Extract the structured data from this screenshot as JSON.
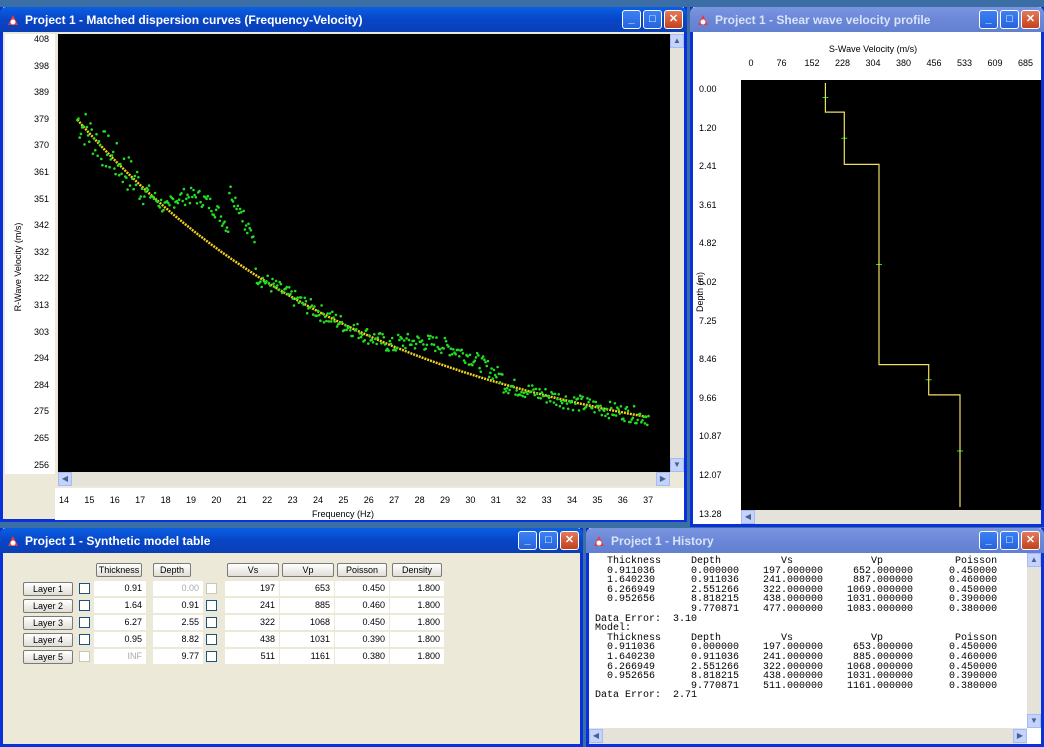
{
  "dispersion_window": {
    "title": "Project 1 - Matched dispersion curves (Frequency-Velocity)",
    "y_axis_label": "R-Wave Velocity (m/s)",
    "x_axis_label": "Frequency (Hz)",
    "y_ticks": [
      "408",
      "398",
      "389",
      "379",
      "370",
      "361",
      "351",
      "342",
      "332",
      "322",
      "313",
      "303",
      "294",
      "284",
      "275",
      "265",
      "256"
    ],
    "x_ticks": [
      "14",
      "15",
      "16",
      "17",
      "18",
      "19",
      "20",
      "21",
      "22",
      "23",
      "24",
      "25",
      "26",
      "27",
      "28",
      "29",
      "30",
      "31",
      "32",
      "33",
      "34",
      "35",
      "36",
      "37"
    ]
  },
  "profile_window": {
    "title": "Project 1 - Shear wave velocity profile",
    "x_axis_label": "S-Wave Velocity (m/s)",
    "y_axis_label": "Depth (m)",
    "x_ticks": [
      "0",
      "76",
      "152",
      "228",
      "304",
      "380",
      "456",
      "533",
      "609",
      "685"
    ],
    "y_ticks": [
      "0.00",
      "1.20",
      "2.41",
      "3.61",
      "4.82",
      "6.02",
      "7.25",
      "8.46",
      "9.66",
      "10.87",
      "12.07",
      "13.28"
    ]
  },
  "model_window": {
    "title": "Project 1 - Synthetic model table",
    "headers": {
      "thickness": "Thickness",
      "depth": "Depth",
      "vs": "Vs",
      "vp": "Vp",
      "poisson": "Poisson",
      "density": "Density"
    },
    "layers": [
      {
        "label": "Layer 1",
        "thickness": "0.91",
        "depth": "0.00",
        "vs": "197",
        "vp": "653",
        "poisson": "0.450",
        "density": "1.800"
      },
      {
        "label": "Layer 2",
        "thickness": "1.64",
        "depth": "0.91",
        "vs": "241",
        "vp": "885",
        "poisson": "0.460",
        "density": "1.800"
      },
      {
        "label": "Layer 3",
        "thickness": "6.27",
        "depth": "2.55",
        "vs": "322",
        "vp": "1068",
        "poisson": "0.450",
        "density": "1.800"
      },
      {
        "label": "Layer 4",
        "thickness": "0.95",
        "depth": "8.82",
        "vs": "438",
        "vp": "1031",
        "poisson": "0.390",
        "density": "1.800"
      },
      {
        "label": "Layer 5",
        "thickness": "INF",
        "depth": "9.77",
        "vs": "511",
        "vp": "1161",
        "poisson": "0.380",
        "density": "1.800"
      }
    ]
  },
  "history_window": {
    "title": "Project 1 - History",
    "text": "  Thickness     Depth          Vs             Vp            Poisson\n  0.911036      0.000000    197.000000     652.000000      0.450000\n  1.640230      0.911036    241.000000     887.000000      0.460000\n  6.266949      2.551266    322.000000    1069.000000      0.450000\n  0.952656      8.818215    438.000000    1031.000000      0.390000\n                9.770871    477.000000    1083.000000      0.380000\nData Error:  3.10\nModel:\n  Thickness     Depth          Vs             Vp            Poisson\n  0.911036      0.000000    197.000000     653.000000      0.450000\n  1.640230      0.911036    241.000000     885.000000      0.460000\n  6.266949      2.551266    322.000000    1068.000000      0.450000\n  0.952656      8.818215    438.000000    1031.000000      0.390000\n                9.770871    511.000000    1161.000000      0.380000\nData Error:  2.71"
  },
  "colors": {
    "measured": "#22dd22",
    "fitted": "#f0d020",
    "profile": "#f0e060",
    "plot_bg": "#000000"
  }
}
